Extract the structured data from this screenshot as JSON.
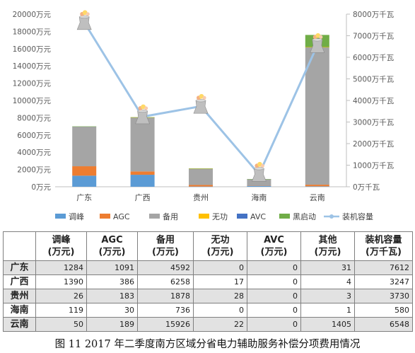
{
  "chart_data": {
    "type": "bar",
    "stacked": true,
    "categories": [
      "广东",
      "广西",
      "贵州",
      "海南",
      "云南"
    ],
    "series": [
      {
        "name": "调峰",
        "color": "#5b9bd5",
        "values": [
          1284,
          1390,
          26,
          119,
          50
        ]
      },
      {
        "name": "AGC",
        "color": "#ed7d31",
        "values": [
          1091,
          386,
          183,
          30,
          189
        ]
      },
      {
        "name": "备用",
        "color": "#a5a5a5",
        "values": [
          4592,
          6258,
          1878,
          736,
          15926
        ]
      },
      {
        "name": "无功",
        "color": "#ffc000",
        "values": [
          0,
          17,
          28,
          0,
          22
        ]
      },
      {
        "name": "AVC",
        "color": "#4472c4",
        "values": [
          0,
          0,
          0,
          0,
          0
        ]
      },
      {
        "name": "黑启动",
        "color": "#70ad47",
        "values": [
          31,
          4,
          3,
          1,
          1405
        ]
      }
    ],
    "line_series": {
      "name": "装机容量",
      "color": "#9dc3e6",
      "axis": "right",
      "values": [
        7612,
        3247,
        3730,
        580,
        6548
      ]
    },
    "left_axis": {
      "min": 0,
      "max": 20000,
      "step": 2000,
      "unit": "万元"
    },
    "right_axis": {
      "min": 0,
      "max": 8000,
      "step": 1000,
      "unit": "万千瓦"
    },
    "legend_position": "bottom",
    "grid": false
  },
  "table": {
    "headers": [
      {
        "line1": "",
        "line2": ""
      },
      {
        "line1": "调峰",
        "line2": "(万元)"
      },
      {
        "line1": "AGC",
        "line2": "(万元)"
      },
      {
        "line1": "备用",
        "line2": "(万元)"
      },
      {
        "line1": "无功",
        "line2": "(万元)"
      },
      {
        "line1": "AVC",
        "line2": "(万元)"
      },
      {
        "line1": "其他",
        "line2": "(万元)"
      },
      {
        "line1": "装机容量",
        "line2": "(万千瓦)"
      }
    ],
    "rows": [
      {
        "label": "广东",
        "values": [
          "1284",
          "1091",
          "4592",
          "0",
          "0",
          "31",
          "7612"
        ]
      },
      {
        "label": "广西",
        "values": [
          "1390",
          "386",
          "6258",
          "17",
          "0",
          "4",
          "3247"
        ]
      },
      {
        "label": "贵州",
        "values": [
          "26",
          "183",
          "1878",
          "28",
          "0",
          "3",
          "3730"
        ]
      },
      {
        "label": "海南",
        "values": [
          "119",
          "30",
          "736",
          "0",
          "0",
          "1",
          "580"
        ]
      },
      {
        "label": "云南",
        "values": [
          "50",
          "189",
          "15926",
          "22",
          "0",
          "1405",
          "6548"
        ]
      }
    ]
  },
  "caption": "图 11   2017 年二季度南方区域分省电力辅助服务补偿分项费用情况",
  "icons": {
    "line_marker": "power-plant-cooling-tower-icon"
  }
}
